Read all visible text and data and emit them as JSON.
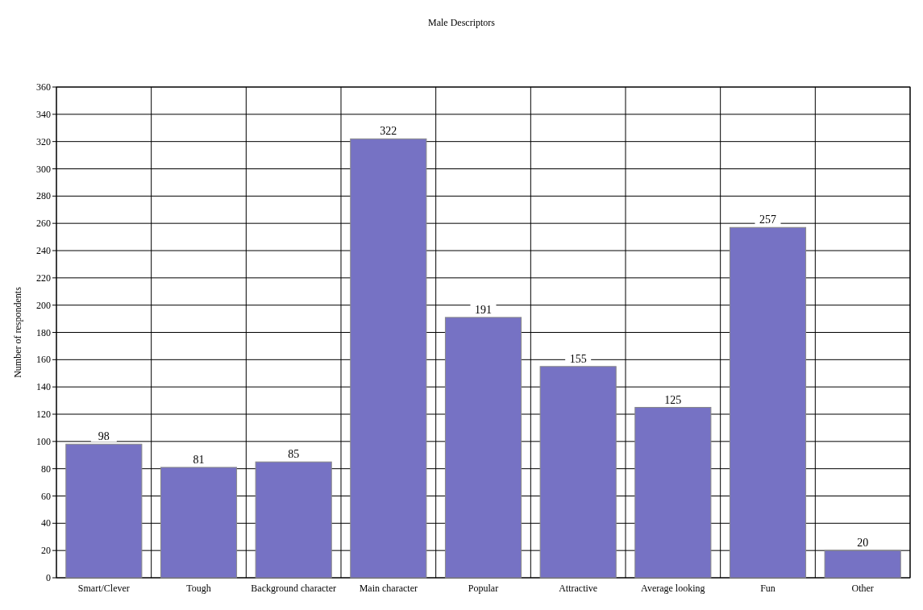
{
  "chart_data": {
    "type": "bar",
    "title": "Male Descriptors",
    "ylabel": "Number of respondents",
    "categories": [
      "Smart/Clever",
      "Tough",
      "Background character",
      "Main character",
      "Popular",
      "Attractive",
      "Average looking",
      "Fun",
      "Other"
    ],
    "values": [
      98,
      81,
      85,
      322,
      191,
      155,
      125,
      257,
      20
    ],
    "color": "#7672c4",
    "ylim": [
      0,
      360
    ],
    "yticks": [
      0,
      20,
      40,
      60,
      80,
      100,
      120,
      140,
      160,
      180,
      200,
      220,
      240,
      260,
      280,
      300,
      320,
      340,
      360
    ],
    "grid": true,
    "data_labels": true
  }
}
